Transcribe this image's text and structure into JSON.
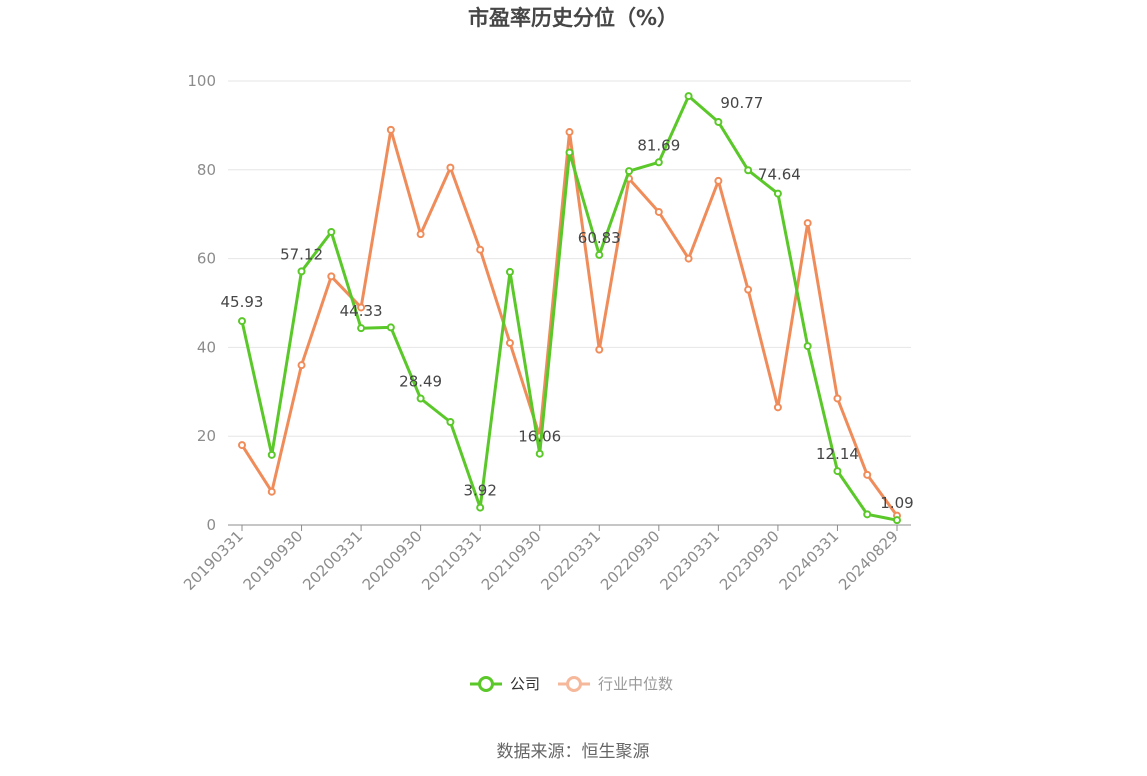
{
  "chart_data": {
    "type": "line",
    "title": "市盈率历史分位（%）",
    "x": [
      "20190331",
      "20190630",
      "20190930",
      "20191231",
      "20200331",
      "20200630",
      "20200930",
      "20201231",
      "20210331",
      "20210630",
      "20210930",
      "20211231",
      "20220331",
      "20220630",
      "20220930",
      "20221231",
      "20230331",
      "20230630",
      "20230930",
      "20231231",
      "20240331",
      "20240630",
      "20240829"
    ],
    "xticks": [
      "20190331",
      "20190930",
      "20200331",
      "20200930",
      "20210331",
      "20210930",
      "20220331",
      "20220930",
      "20230331",
      "20230930",
      "20240331",
      "20240829"
    ],
    "ylim": [
      0,
      100
    ],
    "yticks": [
      0,
      20,
      40,
      60,
      80,
      100
    ],
    "grid": true,
    "legend_position": "bottom",
    "series": [
      {
        "name": "公司",
        "color": "#5ac829",
        "values": [
          45.93,
          15.8,
          57.12,
          66.0,
          44.33,
          44.5,
          28.49,
          23.2,
          3.92,
          57.0,
          16.06,
          83.9,
          60.83,
          79.7,
          81.69,
          96.6,
          90.77,
          79.9,
          74.64,
          40.3,
          12.14,
          2.4,
          1.09
        ],
        "labels": {
          "0": "45.93",
          "2": "57.12",
          "4": "44.33",
          "6": "28.49",
          "8": "3.92",
          "10": "16.06",
          "12": "60.83",
          "14": "81.69",
          "16": "90.77",
          "18": "74.64",
          "20": "12.14",
          "22": "1.09"
        }
      },
      {
        "name": "行业中位数",
        "color": "#f08c5a",
        "values": [
          18.0,
          7.5,
          36.0,
          56.0,
          49.0,
          89.0,
          65.5,
          80.5,
          62.0,
          41.0,
          20.0,
          88.5,
          39.5,
          78.0,
          70.5,
          60.0,
          77.5,
          53.0,
          26.5,
          68.0,
          28.5,
          11.3,
          2.1
        ]
      }
    ]
  },
  "legend": {
    "company": "公司",
    "industry": "行业中位数",
    "industry_text_color": "#999999",
    "company_text_color": "#333333"
  },
  "source": "数据来源：恒生聚源"
}
